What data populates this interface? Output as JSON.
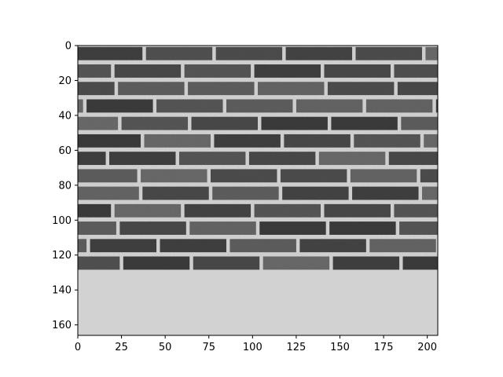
{
  "figure": {
    "kind": "image-plot",
    "content": "grayscale brick wall photograph",
    "colormap": "gray",
    "grid": false
  },
  "axes": {
    "x": {
      "range": [
        0,
        206
      ],
      "ticks": [
        0,
        25,
        50,
        75,
        100,
        125,
        150,
        175,
        200
      ],
      "tick_labels": [
        "0",
        "25",
        "50",
        "75",
        "100",
        "125",
        "150",
        "175",
        "200"
      ]
    },
    "y": {
      "range": [
        0,
        166
      ],
      "inverted": true,
      "ticks": [
        0,
        20,
        40,
        60,
        80,
        100,
        120,
        140,
        160
      ],
      "tick_labels": [
        "0",
        "20",
        "40",
        "60",
        "80",
        "100",
        "120",
        "140",
        "160"
      ]
    }
  },
  "brick_pattern": {
    "course_height": 10,
    "brick_length": 38,
    "row_offsets": [
      -1,
      -19,
      -17,
      -35,
      -15,
      -2,
      -22,
      -4,
      -3,
      -19,
      -16,
      -33,
      -14
    ],
    "colors": {
      "mortar": "#d2d2d2",
      "brick_dark": "#3a3a3a",
      "brick_light": "#6e6e6e",
      "frame": "#000000"
    }
  }
}
